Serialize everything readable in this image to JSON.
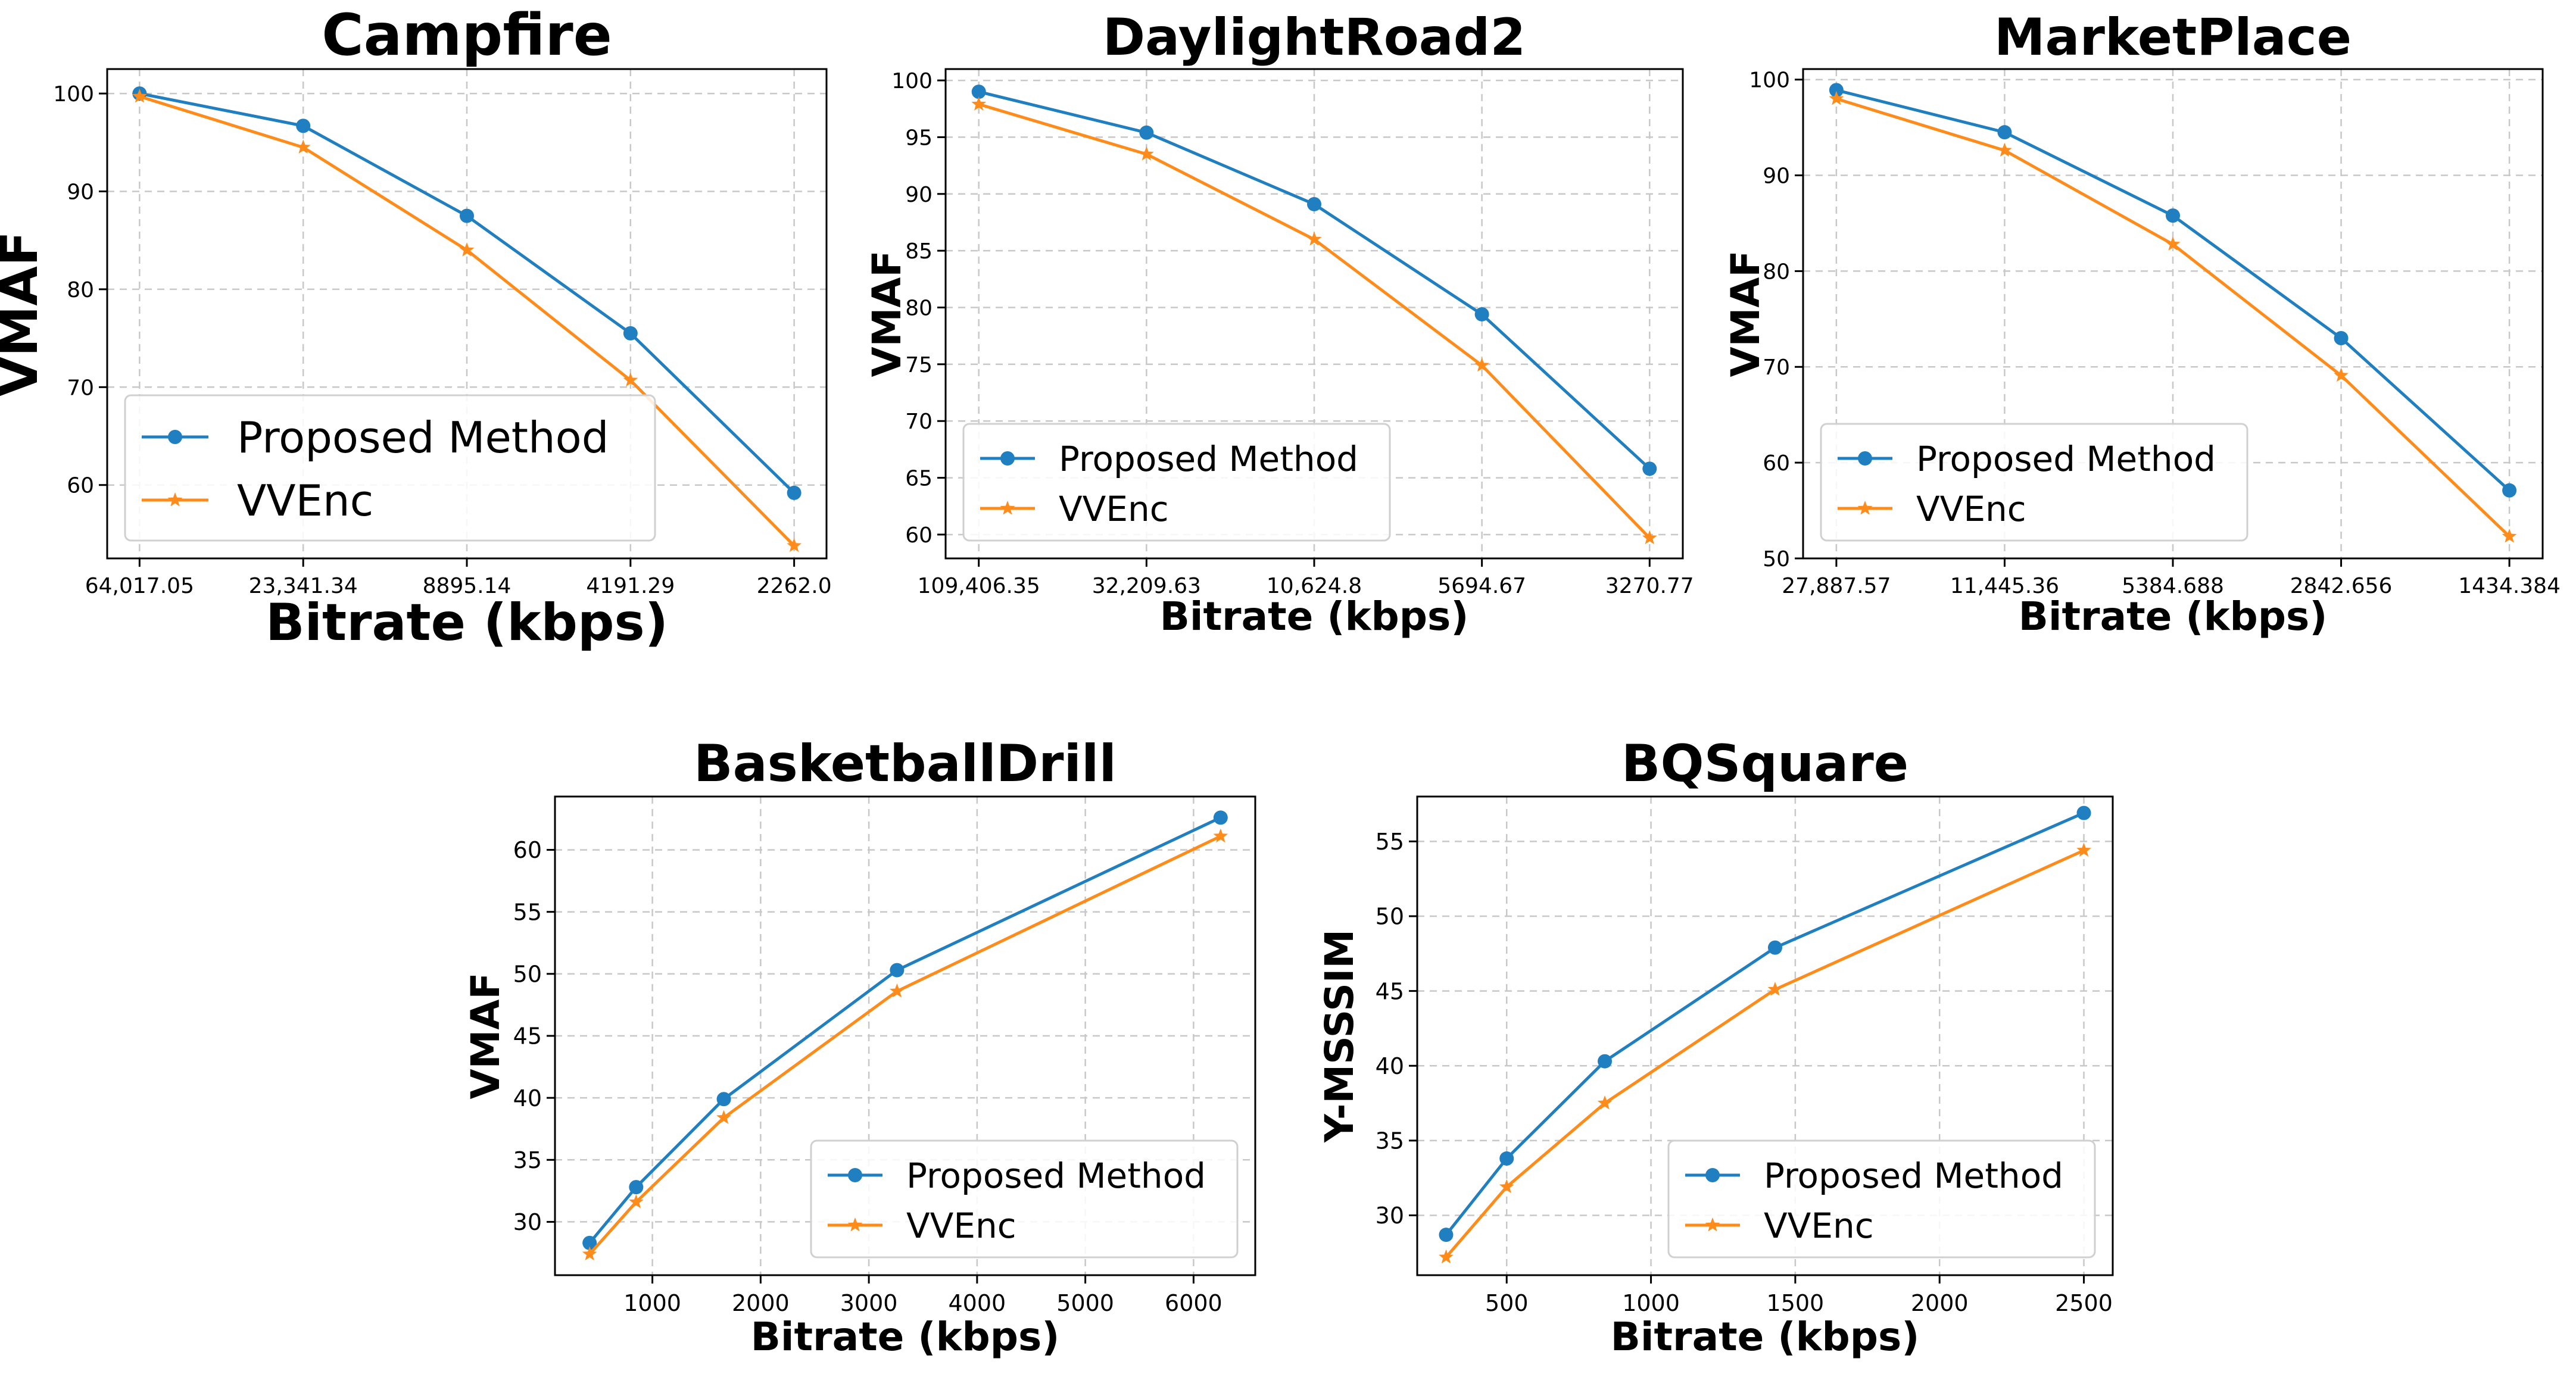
{
  "colors": {
    "proposed": "#1f7fc0",
    "vvenc": "#ff8c1a",
    "grid": "#c8c8c8",
    "axis": "#000000"
  },
  "chart_data": [
    {
      "type": "line",
      "title": "Campfire",
      "xlabel": "Bitrate (kbps)",
      "ylabel": "VMAF",
      "x_scale": "categorical",
      "categories": [
        "64,017.05",
        "23,341.34",
        "8895.14",
        "4191.29",
        "2262.0"
      ],
      "yticks": [
        60,
        70,
        80,
        90,
        100
      ],
      "ylim": [
        52.5,
        102.5
      ],
      "grid": true,
      "legend_position": "lower-left",
      "legend_size": "large",
      "series": [
        {
          "name": "Proposed Method",
          "marker": "circle",
          "values": [
            100.0,
            96.7,
            87.5,
            75.5,
            59.2
          ]
        },
        {
          "name": "VVEnc",
          "marker": "star",
          "values": [
            99.7,
            94.5,
            84.0,
            70.7,
            53.8
          ]
        }
      ]
    },
    {
      "type": "line",
      "title": "DaylightRoad2",
      "xlabel": "Bitrate (kbps)",
      "ylabel": "VMAF",
      "x_scale": "categorical",
      "categories": [
        "109,406.35",
        "32,209.63",
        "10,624.8",
        "5694.67",
        "3270.77"
      ],
      "yticks": [
        60,
        65,
        70,
        75,
        80,
        85,
        90,
        95,
        100
      ],
      "ylim": [
        57.9,
        101.0
      ],
      "grid": true,
      "legend_position": "lower-left",
      "legend_size": "normal",
      "series": [
        {
          "name": "Proposed Method",
          "marker": "circle",
          "values": [
            99.0,
            95.4,
            89.1,
            79.4,
            65.8
          ]
        },
        {
          "name": "VVEnc",
          "marker": "star",
          "values": [
            97.9,
            93.5,
            86.0,
            74.9,
            59.7
          ]
        }
      ]
    },
    {
      "type": "line",
      "title": "MarketPlace",
      "xlabel": "Bitrate (kbps)",
      "ylabel": "VMAF",
      "x_scale": "categorical",
      "categories": [
        "27,887.57",
        "11,445.36",
        "5384.688",
        "2842.656",
        "1434.384"
      ],
      "yticks": [
        50,
        60,
        70,
        80,
        90,
        100
      ],
      "ylim": [
        50.0,
        101.1
      ],
      "grid": true,
      "legend_position": "lower-left",
      "legend_size": "normal",
      "series": [
        {
          "name": "Proposed Method",
          "marker": "circle",
          "values": [
            98.9,
            94.5,
            85.8,
            73.0,
            57.1
          ]
        },
        {
          "name": "VVEnc",
          "marker": "star",
          "values": [
            98.0,
            92.6,
            82.8,
            69.1,
            52.3
          ]
        }
      ]
    },
    {
      "type": "line",
      "title": "BasketballDrill",
      "xlabel": "Bitrate (kbps)",
      "ylabel": "VMAF",
      "x_scale": "linear",
      "xticks": [
        1000,
        2000,
        3000,
        4000,
        5000,
        6000
      ],
      "xlim": [
        100,
        6570
      ],
      "yticks": [
        30,
        35,
        40,
        45,
        50,
        55,
        60
      ],
      "ylim": [
        25.7,
        64.3
      ],
      "grid": true,
      "legend_position": "lower-right",
      "legend_size": "normal",
      "series": [
        {
          "name": "Proposed Method",
          "marker": "circle",
          "x": [
            420,
            850,
            1660,
            3260,
            6250
          ],
          "values": [
            28.3,
            32.8,
            39.9,
            50.3,
            62.6
          ]
        },
        {
          "name": "VVEnc",
          "marker": "star",
          "x": [
            420,
            850,
            1660,
            3260,
            6250
          ],
          "values": [
            27.4,
            31.6,
            38.4,
            48.6,
            61.1
          ]
        }
      ]
    },
    {
      "type": "line",
      "title": "BQSquare",
      "xlabel": "Bitrate (kbps)",
      "ylabel": "Y-MSSSIM",
      "x_scale": "linear",
      "xticks": [
        500,
        1000,
        1500,
        2000,
        2500
      ],
      "xlim": [
        190,
        2600
      ],
      "yticks": [
        30,
        35,
        40,
        45,
        50,
        55
      ],
      "ylim": [
        26.0,
        58.0
      ],
      "grid": true,
      "legend_position": "lower-right",
      "legend_size": "normal",
      "series": [
        {
          "name": "Proposed Method",
          "marker": "circle",
          "x": [
            290,
            500,
            840,
            1430,
            2500
          ],
          "values": [
            28.7,
            33.8,
            40.3,
            47.9,
            56.9
          ]
        },
        {
          "name": "VVEnc",
          "marker": "star",
          "x": [
            290,
            500,
            840,
            1430,
            2500
          ],
          "values": [
            27.2,
            31.9,
            37.5,
            45.1,
            54.4
          ]
        }
      ]
    }
  ]
}
